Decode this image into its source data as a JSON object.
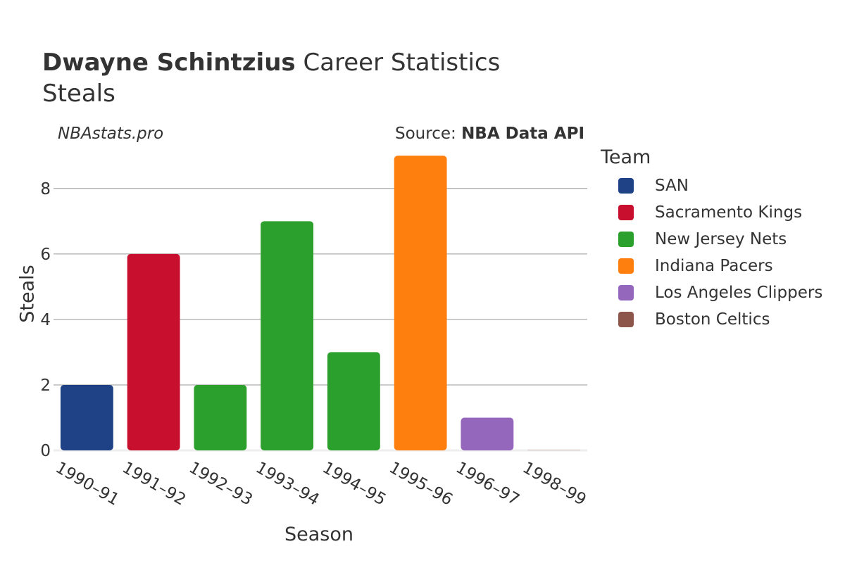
{
  "title": {
    "player": "Dwayne Schintzius",
    "rest": "Career Statistics",
    "subtitle": "Steals"
  },
  "watermark": "NBAstats.pro",
  "source": {
    "label": "Source:",
    "name": "NBA Data API"
  },
  "legend": {
    "title": "Team",
    "items": [
      {
        "label": "SAN",
        "color": "#1f4287"
      },
      {
        "label": "Sacramento Kings",
        "color": "#c8102e"
      },
      {
        "label": "New Jersey Nets",
        "color": "#2ca02c"
      },
      {
        "label": "Indiana Pacers",
        "color": "#ff7f0e"
      },
      {
        "label": "Los Angeles Clippers",
        "color": "#9467bd"
      },
      {
        "label": "Boston Celtics",
        "color": "#8c564b"
      }
    ]
  },
  "chart_data": {
    "type": "bar",
    "title": "Dwayne Schintzius Career Statistics",
    "subtitle": "Steals",
    "xlabel": "Season",
    "ylabel": "Steals",
    "ylim": [
      0,
      9.5
    ],
    "yticks": [
      0,
      2,
      4,
      6,
      8
    ],
    "categories": [
      "1990–91",
      "1991–92",
      "1992–93",
      "1993–94",
      "1994–95",
      "1995–96",
      "1996–97",
      "1998–99"
    ],
    "values": [
      2,
      6,
      2,
      7,
      3,
      9,
      1,
      0
    ],
    "teams": [
      "SAN",
      "Sacramento Kings",
      "New Jersey Nets",
      "New Jersey Nets",
      "New Jersey Nets",
      "Indiana Pacers",
      "Los Angeles Clippers",
      "Boston Celtics"
    ],
    "colors": [
      "#1f4287",
      "#c8102e",
      "#2ca02c",
      "#2ca02c",
      "#2ca02c",
      "#ff7f0e",
      "#9467bd",
      "#8c564b"
    ],
    "grid": true,
    "legend_position": "right"
  }
}
